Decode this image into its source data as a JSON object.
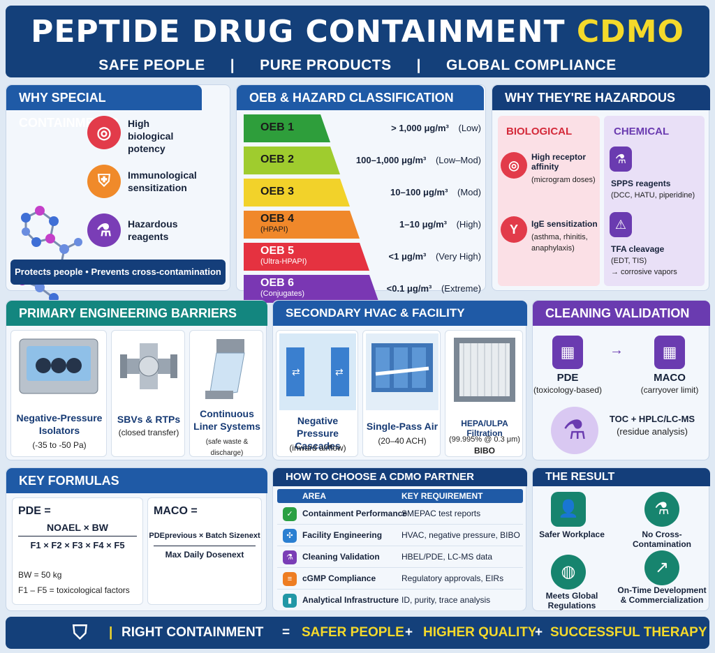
{
  "header": {
    "title_main": "PEPTIDE DRUG CONTAINMENT",
    "title_accent": "CDMO",
    "taglines": [
      "SAFE PEOPLE",
      "PURE PRODUCTS",
      "GLOBAL COMPLIANCE"
    ],
    "sep": "|"
  },
  "why": {
    "title": "WHY SPECIAL CONTAINMENT?",
    "items": [
      {
        "icon": "target-icon",
        "label": "High biological potency"
      },
      {
        "icon": "shield-icon",
        "label": "Immunological sensitization"
      },
      {
        "icon": "flask-icon",
        "label": "Hazardous reagents"
      }
    ],
    "footer_a": "Protects people",
    "footer_dot": "•",
    "footer_b": "Prevents cross-contamination"
  },
  "oeb": {
    "title": "OEB & HAZARD CLASSIFICATION",
    "levels": [
      {
        "name": "OEB 1",
        "sub": "",
        "value": "> 1,000 μg/m³",
        "risk": "(Low)",
        "color": "#2e9e3b"
      },
      {
        "name": "OEB 2",
        "sub": "",
        "value": "100–1,000 μg/m³",
        "risk": "(Low–Mod)",
        "color": "#9fcc2e"
      },
      {
        "name": "OEB 3",
        "sub": "",
        "value": "10–100 μg/m³",
        "risk": "(Mod)",
        "color": "#f2d22a"
      },
      {
        "name": "OEB 4",
        "sub": "(HPAPI)",
        "value": "1–10 μg/m³",
        "risk": "(High)",
        "color": "#f0882a"
      },
      {
        "name": "OEB 5",
        "sub": "(Ultra-HPAPI)",
        "value": "<1 μg/m³",
        "risk": "(Very High)",
        "color": "#e53240"
      },
      {
        "name": "OEB 6",
        "sub": "(Conjugates)",
        "value": "<0.1 μg/m³",
        "risk": "(Extreme)",
        "color": "#7a37b3"
      }
    ]
  },
  "hazard": {
    "title": "WHY THEY'RE HAZARDOUS",
    "bio": {
      "title": "BIOLOGICAL",
      "items": [
        {
          "label": "High receptor affinity",
          "sub": "(microgram doses)"
        },
        {
          "label": "IgE sensitization",
          "sub": "(asthma, rhinitis, anaphylaxis)"
        }
      ]
    },
    "chem": {
      "title": "CHEMICAL",
      "items": [
        {
          "label": "SPPS reagents",
          "sub": "(DCC, HATU, piperidine)"
        },
        {
          "label": "TFA cleavage",
          "sub": "(EDT, TIS)",
          "sub2": "→ corrosive vapors"
        }
      ]
    }
  },
  "primary": {
    "title": "PRIMARY ENGINEERING BARRIERS",
    "items": [
      {
        "label": "Negative-Pressure Isolators",
        "sub": "(-35 to -50 Pa)"
      },
      {
        "label": "SBVs & RTPs",
        "sub": "(closed transfer)"
      },
      {
        "label": "Continuous Liner Systems",
        "sub": "(safe waste & discharge)"
      }
    ]
  },
  "secondary": {
    "title": "SECONDARY HVAC & FACILITY CONTROLS",
    "items": [
      {
        "label": "Negative Pressure Cascades",
        "sub": "(inward airflow)",
        "sub2": ""
      },
      {
        "label": "Single-Pass Air",
        "sub": "(20–40 ACH)",
        "sub2": ""
      },
      {
        "label": "HEPA/ULPA Filtration",
        "sub": "(99.995% @ 0.3 μm)",
        "sub2": "BIBO"
      }
    ]
  },
  "cleaning": {
    "title": "CLEANING VALIDATION",
    "pde": "PDE",
    "pde_sub": "(toxicology-based)",
    "arrow": "→",
    "maco": "MACO",
    "maco_sub": "(carryover limit)",
    "toc": "TOC + HPLC/LC-MS",
    "toc_sub": "(residue analysis)"
  },
  "formulas": {
    "title": "KEY FORMULAS",
    "pde_label": "PDE =",
    "pde_num": "NOAEL × BW",
    "pde_den": "F1 × F2 × F3 × F4 × F5",
    "bw": "BW = 50 kg",
    "factors": "F1 – F5 = toxicological factors",
    "maco_label": "MACO =",
    "maco_num": "PDEprevious × Batch Sizenext",
    "maco_den": "Max Daily Dosenext"
  },
  "cdmo": {
    "title": "HOW TO CHOOSE A CDMO PARTNER",
    "col_a": "AREA",
    "col_b": "KEY REQUIREMENT",
    "rows": [
      {
        "area": "Containment Performance",
        "req": "SMEPAC test reports",
        "color": "#2aa043",
        "icon": "check-shield-icon"
      },
      {
        "area": "Facility Engineering",
        "req": "HVAC, negative pressure, BIBO",
        "color": "#2a7fd1",
        "icon": "fan-icon"
      },
      {
        "area": "Cleaning Validation",
        "req": "HBEL/PDE, LC-MS data",
        "color": "#7a3db6",
        "icon": "flask-icon"
      },
      {
        "area": "cGMP Compliance",
        "req": "Regulatory approvals, EIRs",
        "color": "#ee7d22",
        "icon": "document-icon"
      },
      {
        "area": "Analytical Infrastructure",
        "req": "ID, purity, trace analysis",
        "color": "#2197a6",
        "icon": "bar-chart-icon"
      }
    ]
  },
  "result": {
    "title": "THE RESULT",
    "items": [
      "Safer Workplace",
      "No Cross-Contamination",
      "Meets Global Regulations",
      "On-Time Development & Commercialization"
    ]
  },
  "footer": {
    "a": "RIGHT CONTAINMENT",
    "eq": "=",
    "b": "SAFER PEOPLE",
    "plus": "+",
    "c": "HIGHER QUALITY",
    "d": "SUCCESSFUL THERAPY"
  },
  "colors": {
    "navy": "#14407a",
    "accent": "#f4d92b"
  }
}
